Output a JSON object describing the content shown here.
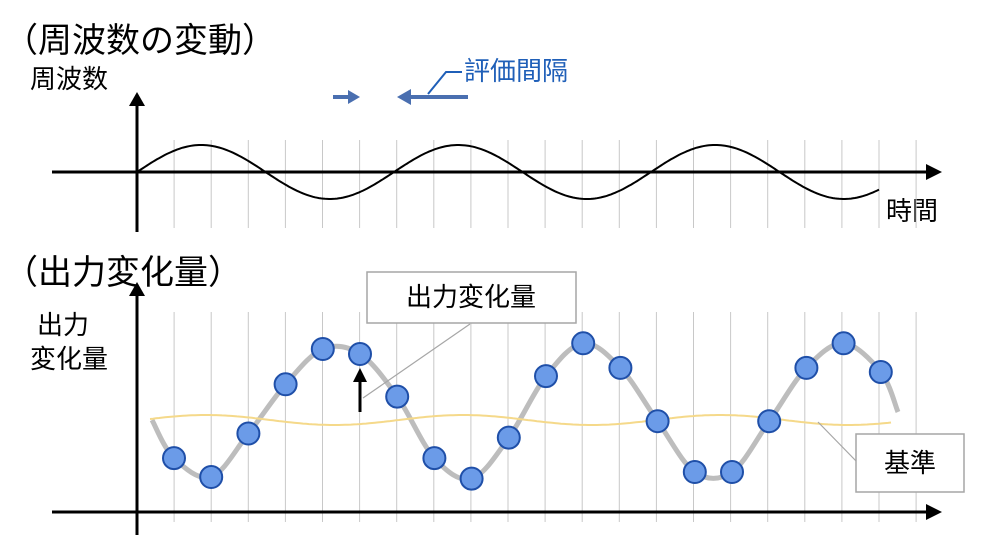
{
  "top_panel": {
    "title": "（周波数の変動）",
    "y_label": "周波数",
    "x_label": "時間",
    "interval_label": "評価間隔"
  },
  "bottom_panel": {
    "title": "（出力変化量）",
    "y_label_line1": "出力",
    "y_label_line2": "変化量",
    "callout_output_change": "出力変化量",
    "callout_reference": "基準"
  },
  "colors": {
    "axis": "#000000",
    "grid": "#c8c8c8",
    "wave": "#000000",
    "annotation_blue": "#1f5fb8",
    "arrow_blue": "#4a6fb0",
    "output_curve": "#bdbdbd",
    "reference_line": "#f5d98a",
    "point_fill": "#6b9be8",
    "point_stroke": "#1f4fa8",
    "callout_border": "#a6a6a6"
  },
  "icons": {
    "interval_arrows": "arrow-right-left-icon"
  },
  "chart_data": {
    "type": "scatter",
    "description_series": "sampled output change at each evaluation interval",
    "samples": 20,
    "values": [
      -0.55,
      -0.78,
      -0.25,
      0.35,
      0.78,
      0.72,
      0.2,
      -0.55,
      -0.8,
      -0.3,
      0.45,
      0.85,
      0.55,
      -0.1,
      -0.72,
      -0.72,
      -0.1,
      0.55,
      0.85,
      0.5
    ],
    "reference_level": 0.0
  }
}
